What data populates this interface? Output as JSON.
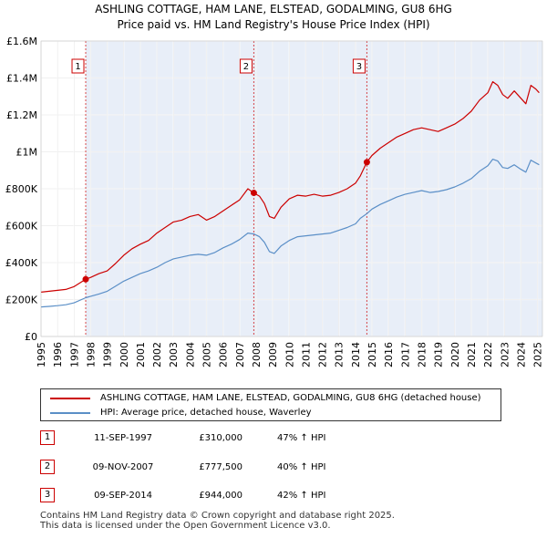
{
  "title": {
    "line1": "ASHLING COTTAGE, HAM LANE, ELSTEAD, GODALMING, GU8 6HG",
    "line2": "Price paid vs. HM Land Registry's House Price Index (HPI)"
  },
  "legend": {
    "items": [
      {
        "label": "ASHLING COTTAGE, HAM LANE, ELSTEAD, GODALMING, GU8 6HG (detached house)",
        "color": "#cc0000"
      },
      {
        "label": "HPI: Average price, detached house, Waverley",
        "color": "#5b8fc7"
      }
    ]
  },
  "sales": [
    {
      "num": "1",
      "date": "11-SEP-1997",
      "price": "£310,000",
      "hpi": "47% ↑ HPI"
    },
    {
      "num": "2",
      "date": "09-NOV-2007",
      "price": "£777,500",
      "hpi": "40% ↑ HPI"
    },
    {
      "num": "3",
      "date": "09-SEP-2014",
      "price": "£944,000",
      "hpi": "42% ↑ HPI"
    }
  ],
  "footer": {
    "line1": "Contains HM Land Registry data © Crown copyright and database right 2025.",
    "line2": "This data is licensed under the Open Government Licence v3.0."
  },
  "colors": {
    "property": "#cc0000",
    "hpi": "#5b8fc7",
    "shade": "#e8eef8",
    "marker_line": "#cc0000"
  },
  "chart_data": {
    "type": "line",
    "title": "ASHLING COTTAGE, HAM LANE, ELSTEAD, GODALMING, GU8 6HG",
    "subtitle": "Price paid vs. HM Land Registry's House Price Index (HPI)",
    "xlabel": "",
    "ylabel": "",
    "xlim": [
      1995,
      2025.3
    ],
    "ylim": [
      0,
      1600000
    ],
    "yticks": [
      {
        "value": 0,
        "label": "£0"
      },
      {
        "value": 200000,
        "label": "£200K"
      },
      {
        "value": 400000,
        "label": "£400K"
      },
      {
        "value": 600000,
        "label": "£600K"
      },
      {
        "value": 800000,
        "label": "£800K"
      },
      {
        "value": 1000000,
        "label": "£1M"
      },
      {
        "value": 1200000,
        "label": "£1.2M"
      },
      {
        "value": 1400000,
        "label": "£1.4M"
      },
      {
        "value": 1600000,
        "label": "£1.6M"
      }
    ],
    "xticks": [
      "1995",
      "1996",
      "1997",
      "1998",
      "1999",
      "2000",
      "2001",
      "2002",
      "2003",
      "2004",
      "2005",
      "2006",
      "2007",
      "2008",
      "2009",
      "2010",
      "2011",
      "2012",
      "2013",
      "2014",
      "2015",
      "2016",
      "2017",
      "2018",
      "2019",
      "2020",
      "2021",
      "2022",
      "2023",
      "2024",
      "2025"
    ],
    "grid": true,
    "series": [
      {
        "name": "ASHLING COTTAGE, HAM LANE, ELSTEAD, GODALMING, GU8 6HG (detached house)",
        "color": "#cc0000",
        "x": [
          1995.0,
          1995.5,
          1996.0,
          1996.5,
          1997.0,
          1997.7,
          1998.0,
          1998.5,
          1999.0,
          1999.5,
          2000.0,
          2000.5,
          2001.0,
          2001.5,
          2002.0,
          2002.5,
          2003.0,
          2003.5,
          2004.0,
          2004.5,
          2005.0,
          2005.5,
          2006.0,
          2006.5,
          2007.0,
          2007.5,
          2007.86,
          2008.2,
          2008.5,
          2008.8,
          2009.1,
          2009.5,
          2010.0,
          2010.5,
          2011.0,
          2011.5,
          2012.0,
          2012.5,
          2013.0,
          2013.5,
          2014.0,
          2014.3,
          2014.69,
          2015.0,
          2015.5,
          2016.0,
          2016.5,
          2017.0,
          2017.5,
          2018.0,
          2018.5,
          2019.0,
          2019.5,
          2020.0,
          2020.5,
          2021.0,
          2021.5,
          2022.0,
          2022.3,
          2022.6,
          2022.9,
          2023.2,
          2023.6,
          2024.0,
          2024.3,
          2024.6,
          2024.9,
          2025.1
        ],
        "values": [
          240000,
          245000,
          250000,
          255000,
          270000,
          310000,
          320000,
          340000,
          355000,
          395000,
          440000,
          475000,
          500000,
          520000,
          560000,
          590000,
          620000,
          630000,
          650000,
          660000,
          630000,
          650000,
          680000,
          710000,
          740000,
          800000,
          777500,
          760000,
          720000,
          650000,
          640000,
          700000,
          745000,
          765000,
          760000,
          770000,
          760000,
          765000,
          780000,
          800000,
          830000,
          870000,
          944000,
          980000,
          1020000,
          1050000,
          1080000,
          1100000,
          1120000,
          1130000,
          1120000,
          1110000,
          1130000,
          1150000,
          1180000,
          1220000,
          1280000,
          1320000,
          1380000,
          1360000,
          1310000,
          1290000,
          1330000,
          1290000,
          1260000,
          1360000,
          1340000,
          1320000
        ]
      },
      {
        "name": "HPI: Average price, detached house, Waverley",
        "color": "#5b8fc7",
        "x": [
          1995.0,
          1995.5,
          1996.0,
          1996.5,
          1997.0,
          1997.7,
          1998.0,
          1998.5,
          1999.0,
          1999.5,
          2000.0,
          2000.5,
          2001.0,
          2001.5,
          2002.0,
          2002.5,
          2003.0,
          2003.5,
          2004.0,
          2004.5,
          2005.0,
          2005.5,
          2006.0,
          2006.5,
          2007.0,
          2007.5,
          2007.86,
          2008.2,
          2008.5,
          2008.8,
          2009.1,
          2009.5,
          2010.0,
          2010.5,
          2011.0,
          2011.5,
          2012.0,
          2012.5,
          2013.0,
          2013.5,
          2014.0,
          2014.3,
          2014.69,
          2015.0,
          2015.5,
          2016.0,
          2016.5,
          2017.0,
          2017.5,
          2018.0,
          2018.5,
          2019.0,
          2019.5,
          2020.0,
          2020.5,
          2021.0,
          2021.5,
          2022.0,
          2022.3,
          2022.6,
          2022.9,
          2023.2,
          2023.6,
          2024.0,
          2024.3,
          2024.6,
          2024.9,
          2025.1
        ],
        "values": [
          160000,
          163000,
          167000,
          172000,
          182000,
          210000,
          218000,
          230000,
          245000,
          272000,
          300000,
          320000,
          340000,
          355000,
          375000,
          400000,
          420000,
          430000,
          440000,
          445000,
          440000,
          455000,
          480000,
          500000,
          525000,
          560000,
          555000,
          540000,
          510000,
          460000,
          450000,
          490000,
          520000,
          540000,
          545000,
          550000,
          555000,
          560000,
          575000,
          590000,
          610000,
          640000,
          665000,
          690000,
          715000,
          735000,
          755000,
          770000,
          780000,
          790000,
          780000,
          785000,
          795000,
          810000,
          830000,
          855000,
          895000,
          925000,
          960000,
          950000,
          915000,
          910000,
          930000,
          905000,
          890000,
          955000,
          940000,
          930000
        ]
      }
    ],
    "markers": [
      {
        "label": "1",
        "x": 1997.7,
        "y": 310000
      },
      {
        "label": "2",
        "x": 2007.86,
        "y": 777500
      },
      {
        "label": "3",
        "x": 2014.69,
        "y": 944000
      }
    ]
  }
}
